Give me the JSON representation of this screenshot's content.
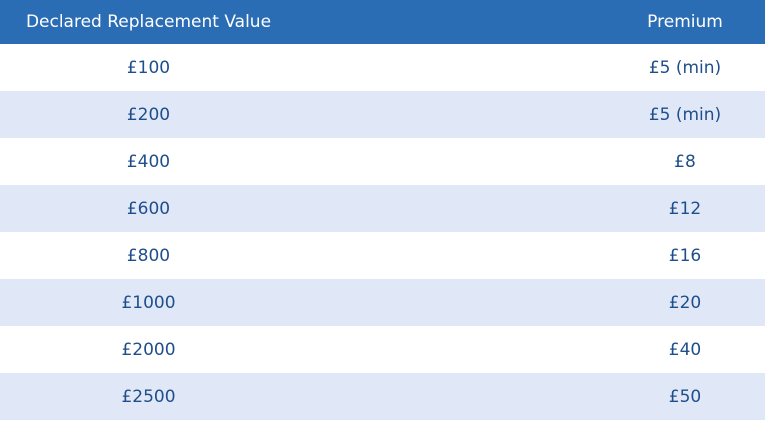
{
  "table": {
    "headers": {
      "value": "Declared Replacement Value",
      "premium": "Premium"
    },
    "rows": [
      {
        "value": "£100",
        "premium": "£5 (min)"
      },
      {
        "value": "£200",
        "premium": "£5 (min)"
      },
      {
        "value": "£400",
        "premium": "£8"
      },
      {
        "value": "£600",
        "premium": "£12"
      },
      {
        "value": "£800",
        "premium": "£16"
      },
      {
        "value": "£1000",
        "premium": "£20"
      },
      {
        "value": "£2000",
        "premium": "£40"
      },
      {
        "value": "£2500",
        "premium": "£50"
      }
    ]
  },
  "colors": {
    "header_bg": "#2a6db5",
    "header_text": "#ffffff",
    "row_alt_bg": "#e0e8f7",
    "cell_text": "#1f4e8c"
  }
}
